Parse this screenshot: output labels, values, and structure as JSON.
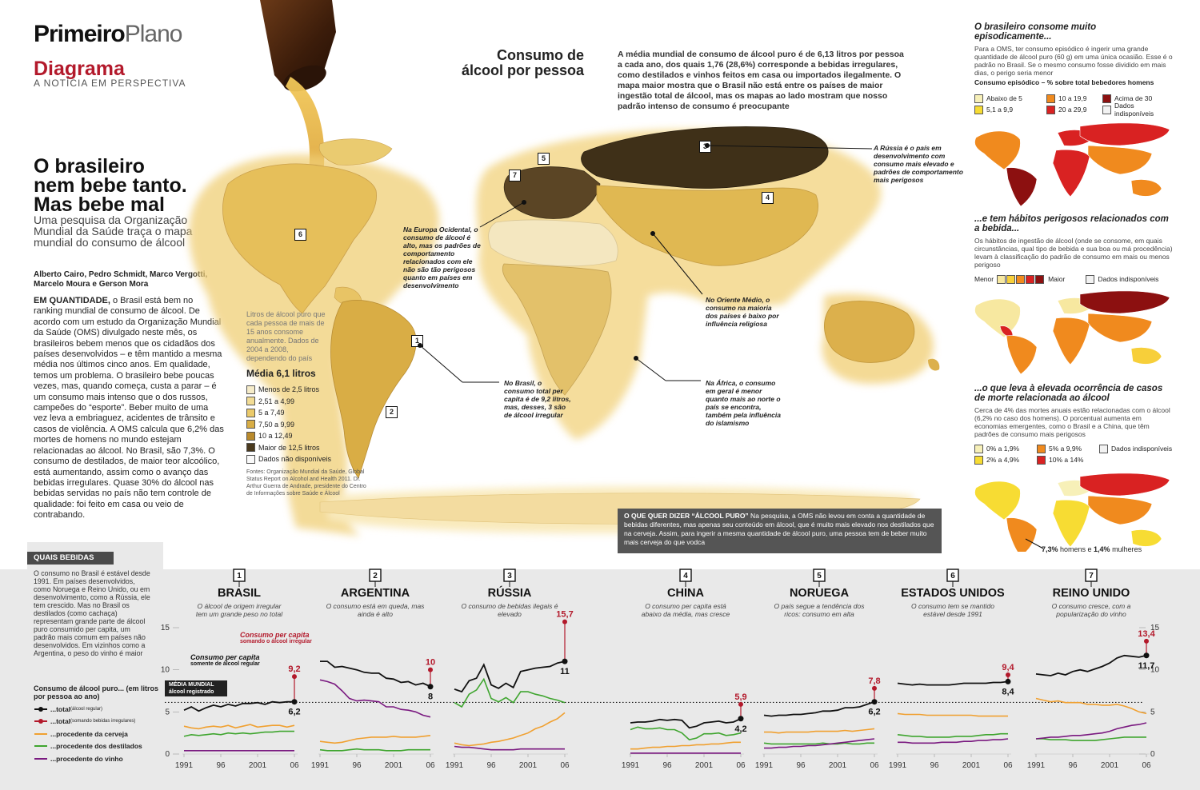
{
  "header": {
    "brand_bold": "Primeiro",
    "brand_thin": "Plano",
    "section": "Diagrama",
    "tagline": "A NOTÍCIA EM PERSPECTIVA"
  },
  "article": {
    "headline_1": "O brasileiro",
    "headline_2": "nem bebe tanto.",
    "headline_3": "Mas bebe mal",
    "intro": "Uma pesquisa da Organização Mundial da Saúde traça o mapa mundial do consumo de álcool",
    "authors": "Alberto Cairo, Pedro Schmidt, Marco Vergotti, Marcelo Moura e Gerson Mora",
    "lead": "EM QUANTIDADE,",
    "body": " o Brasil está bem no ranking mundial de consumo de álcool. De acordo com um estudo da Organização Mundial da Saúde (OMS) divulgado neste mês, os brasileiros bebem menos que os cidadãos dos países desenvolvidos – e têm mantido a mesma média nos últimos cinco anos. Em qualidade, temos um problema. O brasileiro bebe poucas vezes, mas, quando começa, custa a parar – é um consumo mais intenso que o dos russos, campeões do “esporte”. Beber muito de uma vez leva a embriaguez, acidentes de trânsito e casos de violência. A OMS calcula que 6,2% das mortes de homens no mundo estejam relacionadas ao álcool. No Brasil, são 7,3%. O consumo de destilados, de maior teor alcoólico, está aumentando, assim como o avanço das bebidas irregulares. Quase 30% do álcool nas bebidas servidas no país não tem controle de qualidade: foi feito em casa ou veio de contrabando."
  },
  "map": {
    "title_1": "Consumo de",
    "title_2": "álcool por pessoa",
    "description": "A média mundial de consumo de álcool puro é de 6,13 litros por pessoa a cada ano, dos quais 1,76 (28,6%) corresponde a bebidas irregulares, como destilados e vinhos feitos em casa ou importados ilegalmente. O mapa maior mostra que o Brasil não está entre os países de maior ingestão total de álcool, mas os mapas ao lado mostram que nosso padrão intenso de consumo é preocupante",
    "legend_lead": "Litros de álcool puro que cada pessoa de mais de 15 anos consome anualmente. Dados de 2004 a 2008, dependendo do país",
    "legend_mean": "Média 6,1 litros",
    "legend": [
      {
        "label": "Menos de 2,5 litros",
        "color": "#f6ecc9"
      },
      {
        "label": "2,51 a 4,99",
        "color": "#f2dc95"
      },
      {
        "label": "5 a 7,49",
        "color": "#ebca6a"
      },
      {
        "label": "7,50 a 9,99",
        "color": "#d8ad45"
      },
      {
        "label": "10 a 12,49",
        "color": "#b98a2c"
      },
      {
        "label": "Maior de 12,5 litros",
        "color": "#4a3a1e"
      },
      {
        "label": "Dados não disponíveis",
        "color": "#fafafa"
      }
    ],
    "sources": "Fontes: Organização Mundial da Saúde, Global Status Report on Alcohol and Health 2011. Dr. Arthur Guerra de Andrade, presidente do Centro de Informações sobre Saúde e Álcool",
    "callouts": {
      "russia": "A Rússia é o país em desenvolvimento com consumo mais elevado e padrões de comportamento mais perigosos",
      "europe": "Na Europa Ocidental, o consumo de álcool é alto, mas os padrões de comportamento relacionados com ele não são tão perigosos quanto em países em desenvolvimento",
      "middle_east": "No Oriente Médio, o consumo na maioria dos países é baixo por influência religiosa",
      "brazil": "No Brasil, o consumo total per capita é de 9,2 litros, mas, desses, 3 são de álcool irregular",
      "africa": "Na África, o consumo em geral é menor quanto mais ao norte o país se encontra, também pela influência do islamismo"
    },
    "markers": [
      "1",
      "2",
      "3",
      "4",
      "5",
      "6",
      "7"
    ]
  },
  "puro": {
    "title": "O QUE QUER DIZER “ÁLCOOL PURO”",
    "text": " Na pesquisa, a OMS não levou em conta a quantidade de bebidas diferentes, mas apenas seu conteúdo em álcool, que é muito mais elevado nos destilados que na cerveja. Assim, para ingerir a mesma quantidade de álcool puro, uma pessoa tem de beber muito mais cerveja do que vodca"
  },
  "side": {
    "s1_title": "O brasileiro consome muito episodicamente...",
    "s1_text": "Para a OMS, ter consumo episódico é ingerir uma grande quantidade de álcool puro (60 g) em uma única ocasião. Esse é o padrão no Brasil. Se o mesmo consumo fosse dividido em mais dias, o perigo seria menor",
    "s1_sub": "Consumo episódico – % sobre total bebedores homens",
    "s1_legend": [
      {
        "label": "Abaixo de 5",
        "color": "#f7f0b8"
      },
      {
        "label": "10 a 19,9",
        "color": "#f08a1e"
      },
      {
        "label": "Acima de 30",
        "color": "#8c1010"
      },
      {
        "label": "5,1 a 9,9",
        "color": "#f7dc33"
      },
      {
        "label": "20 a 29,9",
        "color": "#d92222"
      },
      {
        "label": "Dados indisponíveis",
        "color": "#f2f2f2"
      }
    ],
    "s2_title": "...e tem hábitos perigosos relacionados com a bebida...",
    "s2_text": "Os hábitos de ingestão de álcool (onde se consome, em quais circunstâncias, qual tipo de bebida e sua boa ou má procedência) levam à classificação do padrão de consumo em mais ou menos perigoso",
    "s2_min": "Menor",
    "s2_max": "Maior",
    "s2_na": "Dados indisponíveis",
    "s2_scale": [
      "#f7e8a0",
      "#f7cf3a",
      "#f08a1e",
      "#d92222",
      "#8c1010"
    ],
    "s3_title": "...o que leva à elevada ocorrência de casos de morte relacionada ao álcool",
    "s3_text": "Cerca de 4% das mortes anuais estão relacionadas com o álcool (6,2% no caso dos homens). O porcentual aumenta em economias emergentes, como o Brasil e a China, que têm padrões de consumo mais perigosos",
    "s3_legend": [
      {
        "label": "0% a 1,9%",
        "color": "#f7f0b8"
      },
      {
        "label": "5% a 9,9%",
        "color": "#f08a1e"
      },
      {
        "label": "Dados indisponíveis",
        "color": "#f2f2f2"
      },
      {
        "label": "2% a 4,9%",
        "color": "#f7dc33"
      },
      {
        "label": "10% a 14%",
        "color": "#d92222"
      }
    ],
    "s3_note_a": "7,3%",
    "s3_note_b": " homens e ",
    "s3_note_c": "1,4%",
    "s3_note_d": " mulheres"
  },
  "quais": {
    "tab": "QUAIS BEBIDAS",
    "text": "O consumo no Brasil é estável desde 1991. Em países desenvolvidos, como Noruega e Reino Unido, ou em desenvolvimento, como a Rússia, ele tem crescido. Mas no Brasil os destilados (como cachaça) representam grande parte de álcool puro consumido per capita, um padrão mais comum em países não desenvolvidos. Em vizinhos como a Argentina, o peso do vinho é maior",
    "legend_title": "Consumo de álcool puro... (em litros por pessoa ao ano)",
    "legend": [
      {
        "label": "...total",
        "small": " (álcool regular)",
        "color": "#111111"
      },
      {
        "label": "...total",
        "small": " (somando bebidas irregulares)",
        "color": "#b3192b"
      },
      {
        "label": "...procedente da cerveja",
        "small": "",
        "color": "#f0a030"
      },
      {
        "label": "...procedente dos destilados",
        "small": "",
        "color": "#3fa52f"
      },
      {
        "label": "...procedente do vinho",
        "small": "",
        "color": "#7a1a80"
      }
    ],
    "mundial_1": "MÉDIA MUNDIAL",
    "mundial_2": "álcool registrado",
    "ann_red_1": "Consumo per capita",
    "ann_red_2": "somando o álcool irregular",
    "ann_blk_1": "Consumo per capita",
    "ann_blk_2": "somente de álcool regular"
  },
  "chart_data": {
    "type": "line",
    "x": [
      1991,
      1992,
      1993,
      1994,
      1995,
      1996,
      1997,
      1998,
      1999,
      2000,
      2001,
      2002,
      2003,
      2004,
      2005,
      2006
    ],
    "x_ticks": [
      "1991",
      "96",
      "2001",
      "06"
    ],
    "y_ticks": [
      "15",
      "10",
      "5",
      "0"
    ],
    "ylim": [
      0,
      15
    ],
    "world_mean": 6.13,
    "panels": [
      {
        "num": "1",
        "country": "BRASIL",
        "subtitle": "O álcool de origem irregular tem um grande peso no total",
        "total_irr": 9.2,
        "total_label": "9,2",
        "reg_label": "6,2",
        "total": [
          5.2,
          5.6,
          5.1,
          5.5,
          5.8,
          5.6,
          5.9,
          5.7,
          6.0,
          6.0,
          6.1,
          5.9,
          6.2,
          6.1,
          6.2,
          6.2
        ],
        "beer": [
          3.3,
          3.1,
          3.0,
          3.2,
          3.3,
          3.2,
          3.4,
          3.1,
          3.3,
          3.5,
          3.2,
          3.3,
          3.4,
          3.4,
          3.2,
          3.4
        ],
        "spirits": [
          2.1,
          2.3,
          2.2,
          2.3,
          2.4,
          2.3,
          2.5,
          2.4,
          2.5,
          2.4,
          2.5,
          2.6,
          2.6,
          2.7,
          2.7,
          2.7
        ],
        "wine": [
          0.4,
          0.4,
          0.4,
          0.4,
          0.4,
          0.4,
          0.4,
          0.4,
          0.4,
          0.4,
          0.4,
          0.4,
          0.4,
          0.4,
          0.4,
          0.4
        ]
      },
      {
        "num": "2",
        "country": "ARGENTINA",
        "subtitle": "O consumo está em queda, mas ainda é alto",
        "total_irr": 10,
        "total_label": "10",
        "reg_label": "8",
        "total": [
          11.0,
          11.0,
          10.3,
          10.4,
          10.2,
          10.0,
          9.7,
          9.6,
          9.6,
          9.0,
          8.9,
          8.5,
          8.6,
          8.2,
          8.4,
          8.0
        ],
        "beer": [
          1.5,
          1.4,
          1.3,
          1.4,
          1.6,
          1.8,
          1.9,
          2.0,
          2.0,
          2.0,
          2.1,
          2.0,
          2.0,
          2.0,
          2.1,
          2.2
        ],
        "spirits": [
          0.5,
          0.4,
          0.4,
          0.4,
          0.5,
          0.6,
          0.5,
          0.5,
          0.5,
          0.4,
          0.4,
          0.4,
          0.5,
          0.5,
          0.5,
          0.5
        ],
        "wine": [
          8.8,
          8.6,
          8.3,
          7.5,
          6.6,
          6.3,
          6.4,
          6.3,
          6.2,
          5.6,
          5.6,
          5.3,
          5.2,
          5.0,
          4.6,
          4.4
        ]
      },
      {
        "num": "3",
        "country": "RÚSSIA",
        "subtitle": "O consumo de bebidas ilegais é elevado",
        "total_irr": 15.7,
        "total_label": "15,7",
        "reg_label": "11",
        "total": [
          7.7,
          7.4,
          8.7,
          9.0,
          10.6,
          8.2,
          7.8,
          8.4,
          7.9,
          9.8,
          10.0,
          10.2,
          10.3,
          10.4,
          10.8,
          11.0
        ],
        "beer": [
          1.3,
          1.1,
          1.0,
          1.1,
          1.2,
          1.4,
          1.5,
          1.7,
          1.9,
          2.2,
          2.5,
          3.0,
          3.3,
          3.8,
          4.2,
          4.9
        ],
        "spirits": [
          6.1,
          5.6,
          7.1,
          7.6,
          8.9,
          6.6,
          6.2,
          6.7,
          6.1,
          7.4,
          7.4,
          7.1,
          6.9,
          6.6,
          6.4,
          6.1
        ],
        "wine": [
          0.9,
          0.8,
          0.8,
          0.7,
          0.6,
          0.5,
          0.5,
          0.5,
          0.5,
          0.6,
          0.6,
          0.6,
          0.6,
          0.6,
          0.6,
          0.6
        ]
      },
      {
        "num": "4",
        "country": "CHINA",
        "subtitle": "O consumo per capita está abaixo da média, mas cresce",
        "total_irr": 5.9,
        "total_label": "5,9",
        "reg_label": "4,2",
        "total": [
          3.7,
          3.8,
          3.8,
          3.9,
          4.1,
          4.0,
          4.1,
          4.0,
          3.1,
          3.3,
          3.7,
          3.8,
          3.9,
          3.7,
          3.8,
          4.2
        ],
        "beer": [
          0.6,
          0.6,
          0.7,
          0.8,
          0.8,
          0.9,
          0.9,
          1.0,
          1.0,
          1.1,
          1.1,
          1.2,
          1.2,
          1.3,
          1.4,
          1.4
        ],
        "spirits": [
          2.9,
          3.2,
          3.0,
          3.0,
          3.1,
          2.9,
          2.9,
          2.5,
          1.7,
          1.9,
          2.4,
          2.4,
          2.5,
          2.2,
          2.3,
          2.5
        ],
        "wine": [
          0.1,
          0.1,
          0.1,
          0.1,
          0.1,
          0.1,
          0.1,
          0.1,
          0.1,
          0.1,
          0.1,
          0.1,
          0.1,
          0.1,
          0.1,
          0.1
        ]
      },
      {
        "num": "5",
        "country": "NORUEGA",
        "subtitle": "O país segue a tendência dos ricos: consumo em alta",
        "total_irr": 7.8,
        "total_label": "7,8",
        "reg_label": "6,2",
        "total": [
          4.6,
          4.5,
          4.6,
          4.6,
          4.7,
          4.7,
          4.8,
          4.9,
          5.1,
          5.1,
          5.2,
          5.5,
          5.5,
          5.6,
          5.9,
          6.2
        ],
        "beer": [
          2.6,
          2.6,
          2.5,
          2.6,
          2.6,
          2.6,
          2.6,
          2.7,
          2.7,
          2.7,
          2.7,
          2.8,
          2.7,
          2.8,
          2.9,
          3.0
        ],
        "spirits": [
          1.3,
          1.2,
          1.2,
          1.2,
          1.2,
          1.2,
          1.2,
          1.2,
          1.3,
          1.2,
          1.2,
          1.3,
          1.2,
          1.2,
          1.3,
          1.3
        ],
        "wine": [
          0.7,
          0.7,
          0.8,
          0.8,
          0.9,
          0.9,
          1.0,
          1.0,
          1.1,
          1.2,
          1.3,
          1.4,
          1.5,
          1.6,
          1.7,
          1.8
        ]
      },
      {
        "num": "6",
        "country": "ESTADOS UNIDOS",
        "subtitle": "O consumo tem se mantido estável desde 1991",
        "total_irr": 9.4,
        "total_label": "9,4",
        "reg_label": "8,4",
        "total": [
          8.4,
          8.3,
          8.2,
          8.3,
          8.2,
          8.2,
          8.2,
          8.2,
          8.3,
          8.4,
          8.4,
          8.4,
          8.4,
          8.5,
          8.5,
          8.6
        ],
        "beer": [
          4.8,
          4.7,
          4.7,
          4.7,
          4.6,
          4.6,
          4.6,
          4.6,
          4.6,
          4.6,
          4.6,
          4.5,
          4.5,
          4.5,
          4.5,
          4.5
        ],
        "spirits": [
          2.3,
          2.2,
          2.1,
          2.1,
          2.0,
          2.0,
          2.0,
          2.0,
          2.1,
          2.1,
          2.1,
          2.2,
          2.3,
          2.3,
          2.4,
          2.4
        ],
        "wine": [
          1.4,
          1.4,
          1.3,
          1.3,
          1.3,
          1.3,
          1.4,
          1.4,
          1.4,
          1.5,
          1.5,
          1.6,
          1.6,
          1.7,
          1.7,
          1.8
        ]
      },
      {
        "num": "7",
        "country": "REINO UNIDO",
        "subtitle": "O consumo cresce, com a popularização do vinho",
        "total_irr": 13.4,
        "total_label": "13,4",
        "reg_label": "11,7",
        "total": [
          9.5,
          9.4,
          9.3,
          9.6,
          9.4,
          9.8,
          10.0,
          9.8,
          10.1,
          10.4,
          10.8,
          11.4,
          11.7,
          11.6,
          11.5,
          11.7
        ],
        "beer": [
          6.6,
          6.4,
          6.2,
          6.3,
          6.1,
          6.1,
          6.1,
          5.9,
          5.9,
          5.8,
          5.8,
          5.9,
          5.7,
          5.4,
          5.0,
          4.8
        ],
        "spirits": [
          1.8,
          1.8,
          1.7,
          1.7,
          1.7,
          1.6,
          1.6,
          1.6,
          1.6,
          1.7,
          1.8,
          1.9,
          2.0,
          2.0,
          2.0,
          2.0
        ],
        "wine": [
          1.8,
          1.9,
          2.0,
          2.0,
          2.1,
          2.2,
          2.2,
          2.3,
          2.4,
          2.5,
          2.7,
          3.0,
          3.2,
          3.4,
          3.5,
          3.7
        ]
      }
    ]
  }
}
